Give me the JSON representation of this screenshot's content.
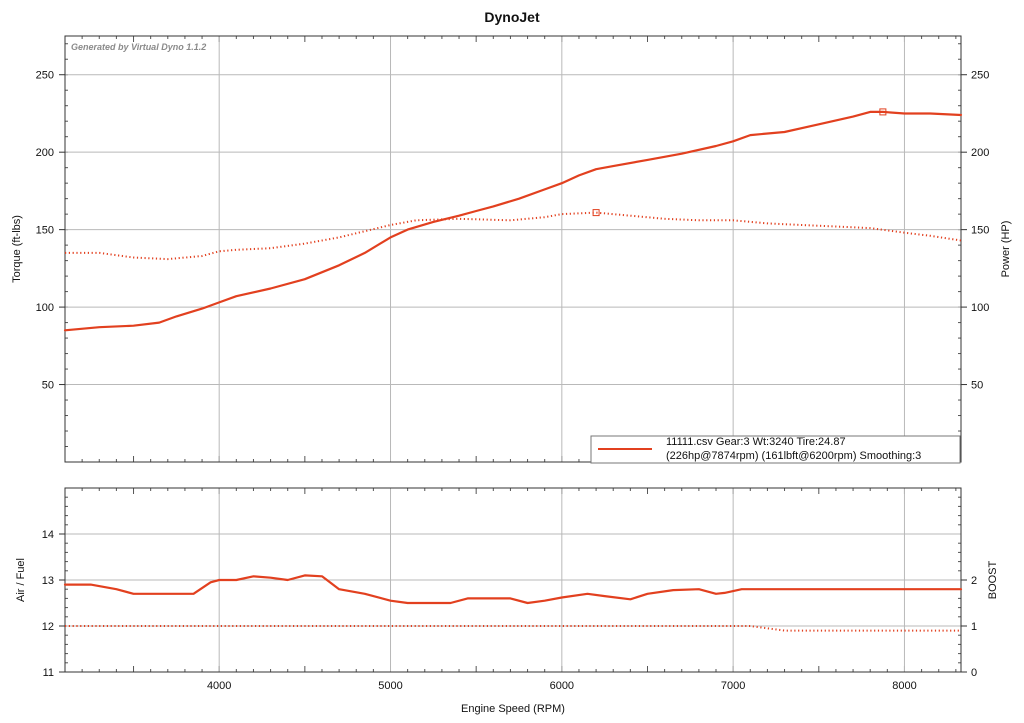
{
  "title": "DynoJet",
  "watermark": "Generated by Virtual Dyno 1.1.2",
  "colors": {
    "series": "#e2401f",
    "grid": "#b9b9b9",
    "frame": "#333333",
    "background": "#ffffff"
  },
  "legend": {
    "line1": "11111.csv Gear:3 Wt:3240 Tire:24.87",
    "line2": "(226hp@7874rpm) (161lbft@6200rpm) Smoothing:3",
    "position": "bottom-right"
  },
  "chart_data": [
    {
      "type": "line",
      "title": "DynoJet",
      "xlabel": "",
      "ylabel": "Torque (ft-lbs)",
      "y2label": "Power (HP)",
      "xlim": [
        3100,
        8330
      ],
      "ylim": [
        0,
        275
      ],
      "y2lim": [
        0,
        275
      ],
      "yticks": [
        50,
        100,
        150,
        200,
        250
      ],
      "y2ticks": [
        50,
        100,
        150,
        200,
        250
      ],
      "xgrid": [
        4000,
        5000,
        6000,
        7000,
        8000
      ],
      "grid": true,
      "series": [
        {
          "axis": "y2",
          "style": "solid",
          "values": [
            [
              3100,
              85
            ],
            [
              3300,
              87
            ],
            [
              3500,
              88
            ],
            [
              3650,
              90
            ],
            [
              3750,
              94
            ],
            [
              3900,
              99
            ],
            [
              4000,
              103
            ],
            [
              4100,
              107
            ],
            [
              4300,
              112
            ],
            [
              4500,
              118
            ],
            [
              4700,
              127
            ],
            [
              4850,
              135
            ],
            [
              5000,
              145
            ],
            [
              5100,
              150
            ],
            [
              5250,
              155
            ],
            [
              5400,
              159
            ],
            [
              5500,
              162
            ],
            [
              5600,
              165
            ],
            [
              5750,
              170
            ],
            [
              5900,
              176
            ],
            [
              6000,
              180
            ],
            [
              6100,
              185
            ],
            [
              6200,
              189
            ],
            [
              6300,
              191
            ],
            [
              6500,
              195
            ],
            [
              6700,
              199
            ],
            [
              6900,
              204
            ],
            [
              7000,
              207
            ],
            [
              7100,
              211
            ],
            [
              7300,
              213
            ],
            [
              7500,
              218
            ],
            [
              7700,
              223
            ],
            [
              7800,
              226
            ],
            [
              7874,
              226
            ],
            [
              8000,
              225
            ],
            [
              8150,
              225
            ],
            [
              8330,
              224
            ]
          ],
          "peak": [
            7874,
            226
          ]
        },
        {
          "axis": "y",
          "style": "dotted",
          "values": [
            [
              3100,
              135
            ],
            [
              3300,
              135
            ],
            [
              3500,
              132
            ],
            [
              3700,
              131
            ],
            [
              3900,
              133
            ],
            [
              4000,
              136
            ],
            [
              4100,
              137
            ],
            [
              4300,
              138
            ],
            [
              4500,
              141
            ],
            [
              4700,
              145
            ],
            [
              4850,
              149
            ],
            [
              5000,
              153
            ],
            [
              5150,
              156
            ],
            [
              5400,
              157
            ],
            [
              5700,
              156
            ],
            [
              5900,
              158
            ],
            [
              6000,
              160
            ],
            [
              6200,
              161
            ],
            [
              6400,
              159
            ],
            [
              6600,
              157
            ],
            [
              6800,
              156
            ],
            [
              7000,
              156
            ],
            [
              7200,
              154
            ],
            [
              7400,
              153
            ],
            [
              7600,
              152
            ],
            [
              7800,
              151
            ],
            [
              8000,
              148
            ],
            [
              8150,
              146
            ],
            [
              8330,
              143
            ]
          ],
          "peak": [
            6200,
            161
          ]
        }
      ]
    },
    {
      "type": "line",
      "xlabel": "Engine Speed (RPM)",
      "ylabel": "Air / Fuel",
      "y2label": "BOOST",
      "xlim": [
        3100,
        8330
      ],
      "ylim": [
        11,
        15
      ],
      "y2lim": [
        0,
        4
      ],
      "yticks": [
        11,
        12,
        13,
        14
      ],
      "y2ticks": [
        0,
        1,
        2
      ],
      "xticks": [
        4000,
        5000,
        6000,
        7000,
        8000
      ],
      "grid": true,
      "series": [
        {
          "axis": "y",
          "style": "solid",
          "values": [
            [
              3100,
              12.9
            ],
            [
              3250,
              12.9
            ],
            [
              3400,
              12.8
            ],
            [
              3500,
              12.7
            ],
            [
              3700,
              12.7
            ],
            [
              3850,
              12.7
            ],
            [
              3950,
              12.95
            ],
            [
              4000,
              13.0
            ],
            [
              4100,
              13.0
            ],
            [
              4200,
              13.08
            ],
            [
              4300,
              13.05
            ],
            [
              4400,
              13.0
            ],
            [
              4500,
              13.1
            ],
            [
              4600,
              13.08
            ],
            [
              4700,
              12.8
            ],
            [
              4850,
              12.7
            ],
            [
              5000,
              12.55
            ],
            [
              5100,
              12.5
            ],
            [
              5250,
              12.5
            ],
            [
              5350,
              12.5
            ],
            [
              5450,
              12.6
            ],
            [
              5600,
              12.6
            ],
            [
              5700,
              12.6
            ],
            [
              5800,
              12.5
            ],
            [
              5900,
              12.55
            ],
            [
              6000,
              12.62
            ],
            [
              6150,
              12.7
            ],
            [
              6250,
              12.65
            ],
            [
              6400,
              12.58
            ],
            [
              6500,
              12.7
            ],
            [
              6650,
              12.78
            ],
            [
              6800,
              12.8
            ],
            [
              6900,
              12.7
            ],
            [
              6950,
              12.72
            ],
            [
              7050,
              12.8
            ],
            [
              7200,
              12.8
            ],
            [
              8330,
              12.8
            ]
          ]
        },
        {
          "axis": "y2",
          "style": "dotted",
          "values": [
            [
              3100,
              1.0
            ],
            [
              7100,
              1.0
            ],
            [
              7200,
              0.95
            ],
            [
              7300,
              0.9
            ],
            [
              7500,
              0.9
            ],
            [
              8330,
              0.9
            ]
          ]
        }
      ]
    }
  ]
}
